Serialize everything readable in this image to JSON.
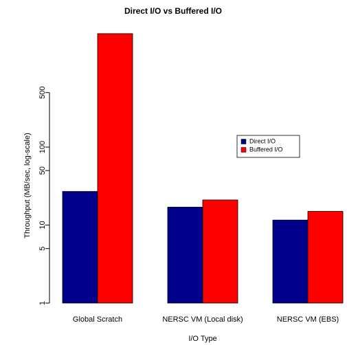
{
  "chart_data": {
    "type": "bar",
    "title": "Direct I/O vs Buffered I/O",
    "x_label": "I/O Type",
    "y_label": "Throughput (MB/sec, log-scale)",
    "categories": [
      "Global Scratch",
      "NERSC VM (Local disk)",
      "NERSC VM (EBS)"
    ],
    "series": [
      {
        "name": "Direct I/O",
        "color": "#00008b",
        "values": [
          27,
          17,
          11.6
        ]
      },
      {
        "name": "Buffered I/O",
        "color": "#ff0000",
        "values": [
          2850,
          21,
          15
        ]
      }
    ],
    "log_y": true,
    "ylim": [
      1,
      3000
    ],
    "yticks": [
      1,
      5,
      10,
      50,
      100,
      500
    ],
    "legend": "right"
  }
}
